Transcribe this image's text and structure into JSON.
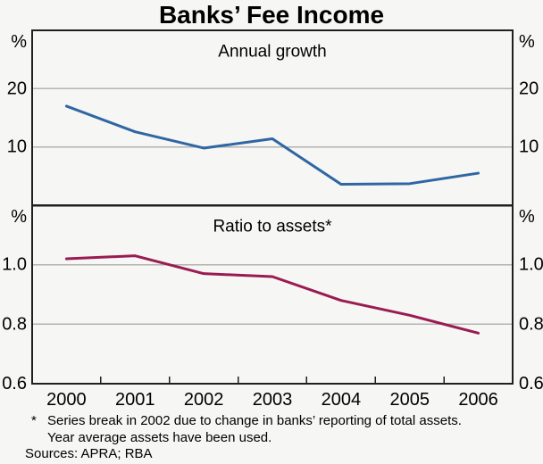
{
  "title": "Banks’ Fee Income",
  "footnote": {
    "marker": "*",
    "line1": "Series break in 2002 due to change in banks’ reporting of total assets.",
    "line2": "Year average assets have been used.",
    "sources": "Sources: APRA; RBA"
  },
  "colors": {
    "background": "#f6f6f4",
    "frame": "#1f1f1f",
    "grid": "#b3b3b0",
    "annual_growth_line": "#2f66a3",
    "ratio_line": "#9a1b52"
  },
  "chart_data": {
    "type": "line",
    "x_axis": {
      "range": [
        1999.5,
        2006.5
      ],
      "ticks": [
        2000.5,
        2001.5,
        2002.5,
        2003.5,
        2004.5,
        2005.5
      ],
      "labels": [
        {
          "value": 2000,
          "text": "2000"
        },
        {
          "value": 2001,
          "text": "2001"
        },
        {
          "value": 2002,
          "text": "2002"
        },
        {
          "value": 2003,
          "text": "2003"
        },
        {
          "value": 2004,
          "text": "2004"
        },
        {
          "value": 2005,
          "text": "2005"
        },
        {
          "value": 2006,
          "text": "2006"
        }
      ]
    },
    "panels": [
      {
        "name": "annual-growth",
        "label": "Annual growth",
        "unit": "%",
        "ylim": [
          0,
          30
        ],
        "gridlines": [
          {
            "value": 20,
            "label": "20"
          },
          {
            "value": 10,
            "label": "10"
          }
        ],
        "series": {
          "name": "Annual growth",
          "color": "#2f66a3",
          "x": [
            2000,
            2001,
            2002,
            2003,
            2004,
            2005,
            2006
          ],
          "values": [
            17.0,
            12.6,
            9.8,
            11.4,
            3.6,
            3.7,
            5.5
          ]
        }
      },
      {
        "name": "ratio-to-assets",
        "label": "Ratio to assets*",
        "unit": "%",
        "ylim": [
          0.6,
          1.2
        ],
        "gridlines": [
          {
            "value": 1.0,
            "label": "1.0"
          },
          {
            "value": 0.8,
            "label": "0.8"
          }
        ],
        "baseline_label": {
          "value": 0.6,
          "label": "0.6"
        },
        "series": {
          "name": "Ratio to assets",
          "color": "#9a1b52",
          "x": [
            2000,
            2001,
            2002,
            2003,
            2004,
            2005,
            2006
          ],
          "values": [
            1.02,
            1.03,
            0.97,
            0.96,
            0.88,
            0.83,
            0.77
          ]
        }
      }
    ]
  }
}
